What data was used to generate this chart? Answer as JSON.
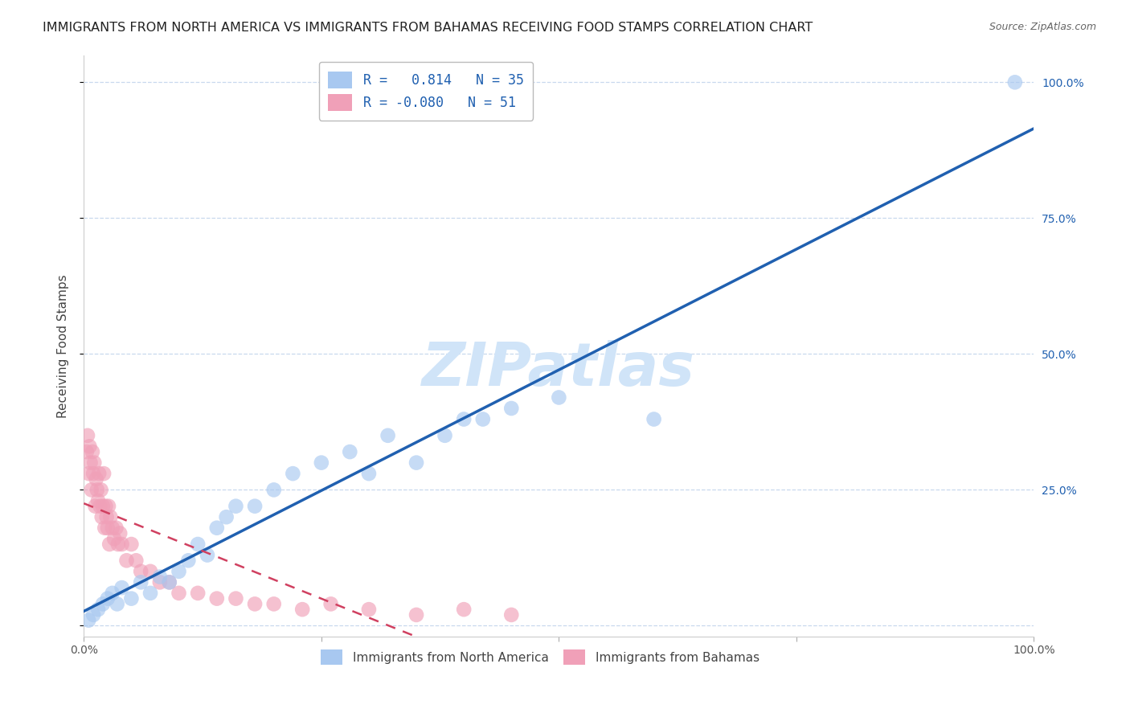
{
  "title": "IMMIGRANTS FROM NORTH AMERICA VS IMMIGRANTS FROM BAHAMAS RECEIVING FOOD STAMPS CORRELATION CHART",
  "source": "Source: ZipAtlas.com",
  "ylabel": "Receiving Food Stamps",
  "xlim": [
    0,
    1.0
  ],
  "ylim": [
    -0.02,
    1.05
  ],
  "yticks": [
    0.0,
    0.25,
    0.5,
    0.75,
    1.0
  ],
  "right_ytick_labels": [
    "",
    "25.0%",
    "50.0%",
    "75.0%",
    "100.0%"
  ],
  "legend_r1_val": "0.814",
  "legend_n1": "35",
  "legend_r2_val": "-0.080",
  "legend_n2": "51",
  "blue_color": "#a8c8f0",
  "pink_color": "#f0a0b8",
  "blue_line_color": "#2060b0",
  "pink_line_color": "#d04060",
  "watermark_text": "ZIPatlas",
  "watermark_color": "#d0e4f8",
  "blue_scatter_x": [
    0.005,
    0.01,
    0.015,
    0.02,
    0.025,
    0.03,
    0.035,
    0.04,
    0.05,
    0.06,
    0.07,
    0.08,
    0.09,
    0.1,
    0.11,
    0.12,
    0.13,
    0.14,
    0.15,
    0.16,
    0.18,
    0.2,
    0.22,
    0.25,
    0.28,
    0.3,
    0.32,
    0.35,
    0.38,
    0.4,
    0.42,
    0.45,
    0.5,
    0.6,
    0.98
  ],
  "blue_scatter_y": [
    0.01,
    0.02,
    0.03,
    0.04,
    0.05,
    0.06,
    0.04,
    0.07,
    0.05,
    0.08,
    0.06,
    0.09,
    0.08,
    0.1,
    0.12,
    0.15,
    0.13,
    0.18,
    0.2,
    0.22,
    0.22,
    0.25,
    0.28,
    0.3,
    0.32,
    0.28,
    0.35,
    0.3,
    0.35,
    0.38,
    0.38,
    0.4,
    0.42,
    0.38,
    1.0
  ],
  "pink_scatter_x": [
    0.003,
    0.004,
    0.005,
    0.006,
    0.007,
    0.008,
    0.009,
    0.01,
    0.011,
    0.012,
    0.013,
    0.014,
    0.015,
    0.016,
    0.017,
    0.018,
    0.019,
    0.02,
    0.021,
    0.022,
    0.023,
    0.024,
    0.025,
    0.026,
    0.027,
    0.028,
    0.03,
    0.032,
    0.034,
    0.036,
    0.038,
    0.04,
    0.045,
    0.05,
    0.055,
    0.06,
    0.07,
    0.08,
    0.09,
    0.1,
    0.12,
    0.14,
    0.16,
    0.18,
    0.2,
    0.23,
    0.26,
    0.3,
    0.35,
    0.4,
    0.45
  ],
  "pink_scatter_y": [
    0.32,
    0.35,
    0.28,
    0.33,
    0.3,
    0.25,
    0.32,
    0.28,
    0.3,
    0.22,
    0.27,
    0.25,
    0.23,
    0.28,
    0.22,
    0.25,
    0.2,
    0.22,
    0.28,
    0.18,
    0.22,
    0.2,
    0.18,
    0.22,
    0.15,
    0.2,
    0.18,
    0.16,
    0.18,
    0.15,
    0.17,
    0.15,
    0.12,
    0.15,
    0.12,
    0.1,
    0.1,
    0.08,
    0.08,
    0.06,
    0.06,
    0.05,
    0.05,
    0.04,
    0.04,
    0.03,
    0.04,
    0.03,
    0.02,
    0.03,
    0.02
  ],
  "background_color": "#ffffff",
  "grid_color": "#c8d8ee",
  "title_fontsize": 11.5,
  "source_fontsize": 9,
  "axis_label_fontsize": 11
}
